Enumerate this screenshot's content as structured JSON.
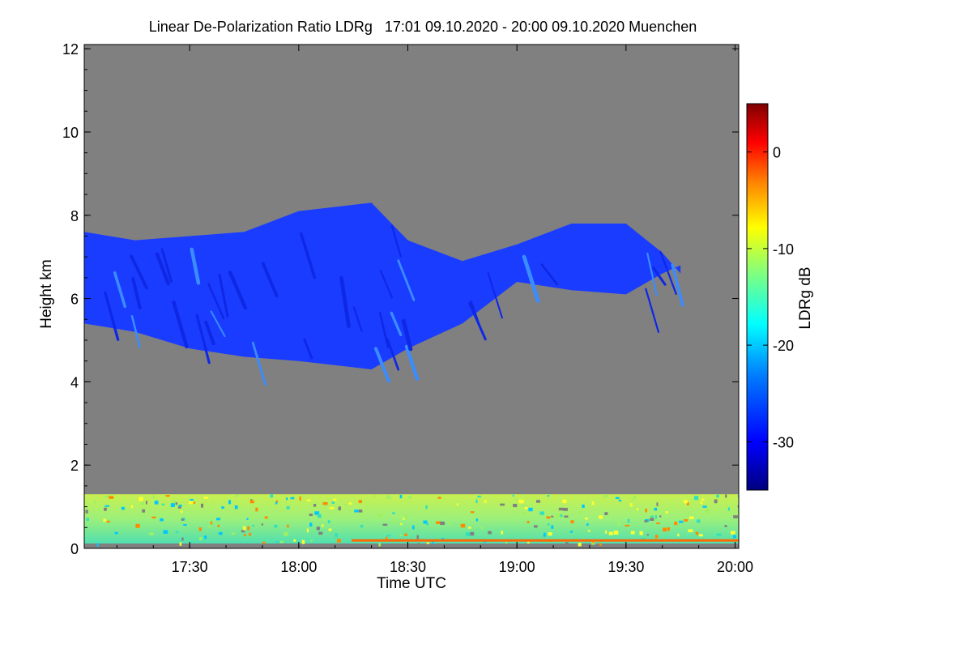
{
  "chart_data": {
    "type": "heatmap",
    "title": "Linear De-Polarization Ratio LDRg   17:01 09.10.2020 - 20:00 09.10.2020 Muenchen",
    "xlabel": "Time UTC",
    "ylabel": "Height km",
    "xlim": [
      "17:01",
      "20:01"
    ],
    "ylim": [
      0,
      12.1
    ],
    "x_ticks": [
      "17:30",
      "18:00",
      "18:30",
      "19:00",
      "19:30",
      "20:00"
    ],
    "y_ticks": [
      "0",
      "2",
      "4",
      "6",
      "8",
      "10",
      "12"
    ],
    "colorbar": {
      "label": "LDRg dB",
      "range": [
        -35,
        5
      ],
      "ticks": [
        "0",
        "-10",
        "-20",
        "-30"
      ],
      "colormap": [
        "#00007f",
        "#0000ff",
        "#007fff",
        "#00ffff",
        "#7fff7f",
        "#ffff00",
        "#ff7f00",
        "#ff0000",
        "#7f0000"
      ]
    },
    "background_color": "#808080",
    "cloud_layer": {
      "description_value": "mid-level cloud, mostly -30 dB",
      "typical_value_db": -30,
      "top_km": [
        7.6,
        7.4,
        7.5,
        7.6,
        8.1,
        8.3,
        7.4,
        6.9,
        7.3,
        7.8,
        7.8,
        7.1,
        6.6
      ],
      "base_km": [
        5.4,
        5.2,
        4.8,
        4.6,
        4.5,
        4.3,
        4.8,
        5.4,
        6.4,
        6.2,
        6.1,
        6.6,
        6.8
      ],
      "time_points": [
        "17:01",
        "17:15",
        "17:30",
        "17:45",
        "18:00",
        "18:20",
        "18:30",
        "18:45",
        "19:00",
        "19:15",
        "19:30",
        "19:40",
        "19:45"
      ]
    },
    "boundary_layer": {
      "top_km": 1.3,
      "typical_value_db": -15
    }
  }
}
